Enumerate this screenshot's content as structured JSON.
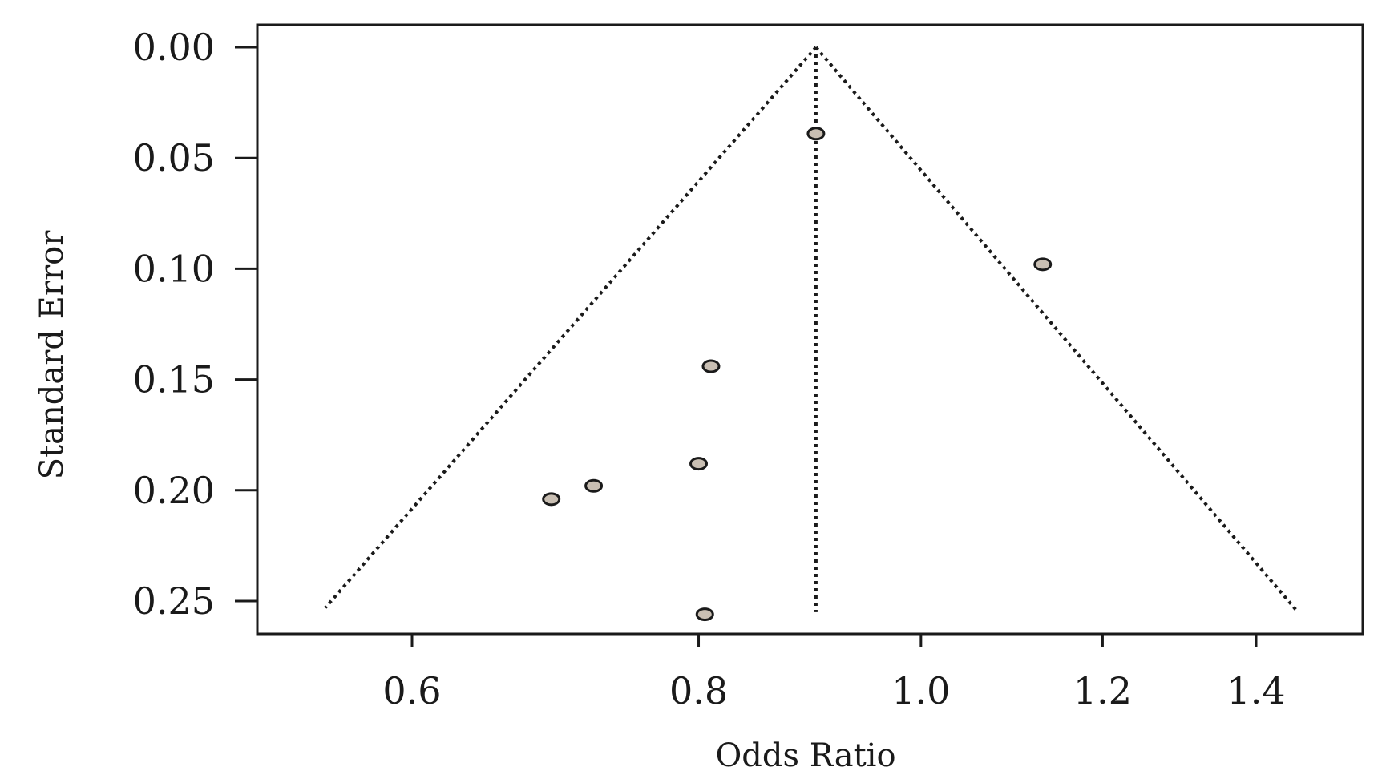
{
  "chart_data": {
    "type": "scatter",
    "subtype": "funnel plot",
    "xlabel": "Odds Ratio",
    "ylabel": "Standard Error",
    "x_scale": "log",
    "x_ticks": [
      0.6,
      0.8,
      1.0,
      1.2,
      1.4
    ],
    "x_tick_labels": [
      "0.6",
      "0.8",
      "1.0",
      "1.2",
      "1.4"
    ],
    "y_ticks": [
      0.0,
      0.05,
      0.1,
      0.15,
      0.2,
      0.25
    ],
    "y_tick_labels": [
      "0.00",
      "0.05",
      "0.10",
      "0.15",
      "0.20",
      "0.25"
    ],
    "y_inverted": true,
    "xlim": [
      0.51,
      1.53
    ],
    "ylim": [
      0.0,
      0.265
    ],
    "pooled_or": 0.9,
    "funnel": {
      "apex": {
        "x": 0.9,
        "y": 0.0
      },
      "left_base": {
        "x": 0.55,
        "y": 0.253
      },
      "right_base": {
        "x": 1.46,
        "y": 0.255
      }
    },
    "points": [
      {
        "x": 0.9,
        "y": 0.039
      },
      {
        "x": 1.13,
        "y": 0.098
      },
      {
        "x": 0.81,
        "y": 0.144
      },
      {
        "x": 0.8,
        "y": 0.188
      },
      {
        "x": 0.72,
        "y": 0.198
      },
      {
        "x": 0.69,
        "y": 0.204
      },
      {
        "x": 0.805,
        "y": 0.256
      }
    ],
    "point_fill": "#c9bfb3",
    "line_color": "#1a1a1a",
    "grid": false
  }
}
